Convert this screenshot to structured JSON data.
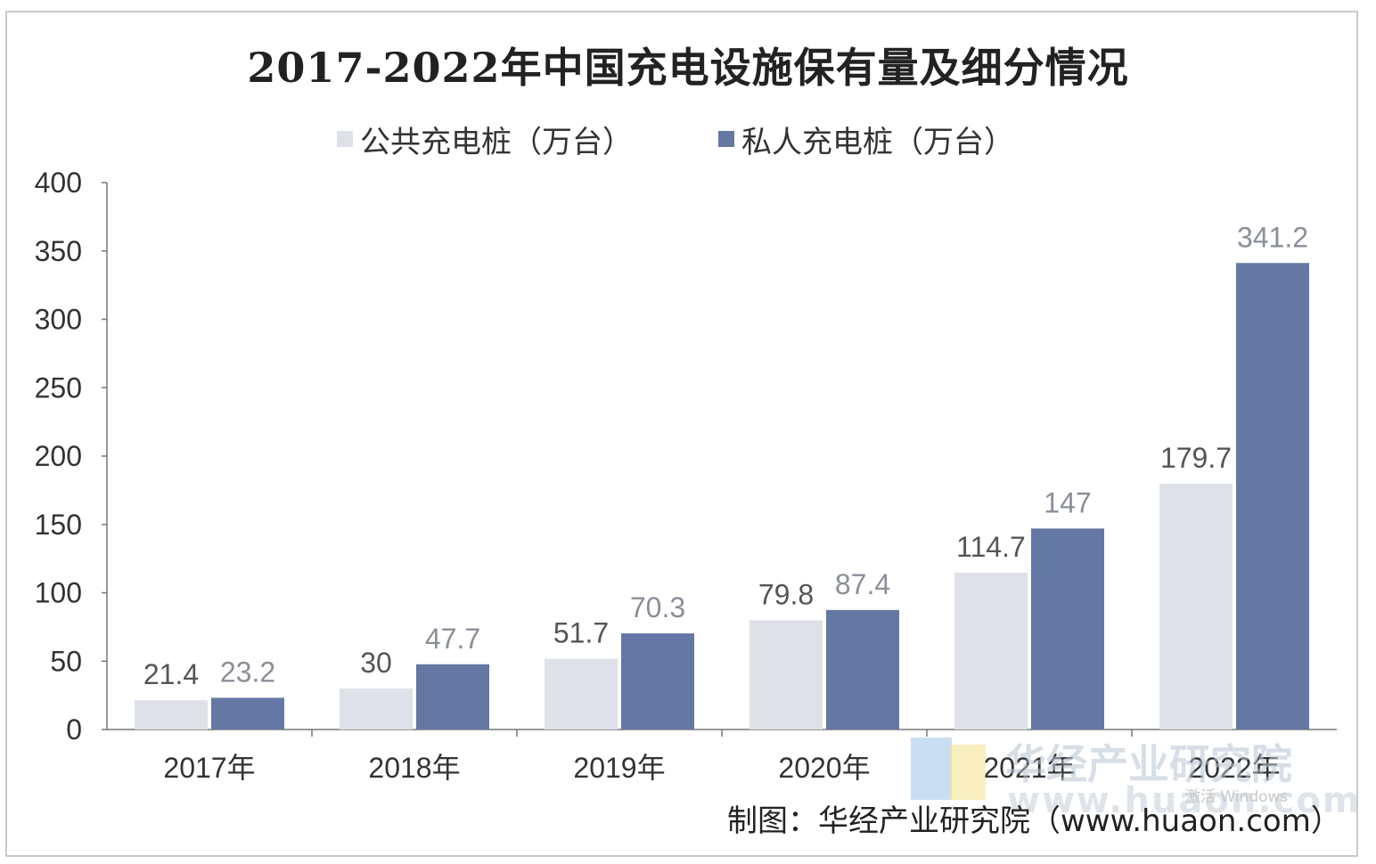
{
  "chart_data": {
    "type": "bar",
    "title": "2017-2022年中国充电设施保有量及细分情况",
    "categories": [
      "2017年",
      "2018年",
      "2019年",
      "2020年",
      "2021年",
      "2022年"
    ],
    "series": [
      {
        "name": "公共充电桩（万台）",
        "color": "#dfe1e8",
        "values": [
          21.4,
          30,
          51.7,
          79.8,
          114.7,
          179.7
        ],
        "labels": [
          "21.4",
          "30",
          "51.7",
          "79.8",
          "114.7",
          "179.7"
        ],
        "label_color": "#555555"
      },
      {
        "name": "私人充电桩（万台）",
        "color": "#6577a3",
        "values": [
          23.2,
          47.7,
          70.3,
          87.4,
          147,
          341.2
        ],
        "labels": [
          "23.2",
          "47.7",
          "70.3",
          "87.4",
          "147",
          "341.2"
        ],
        "label_color": "#8a8f98"
      }
    ],
    "ylim": [
      0,
      400
    ],
    "yticks": [
      0,
      50,
      100,
      150,
      200,
      250,
      300,
      350,
      400
    ],
    "grid": false,
    "legend_position": "top"
  },
  "source_text": "制图：华经产业研究院（www.huaon.com）",
  "watermark": {
    "name": "华经产业研究院",
    "url": "www.huaon.com"
  },
  "overlay_text": "激活 Windows"
}
